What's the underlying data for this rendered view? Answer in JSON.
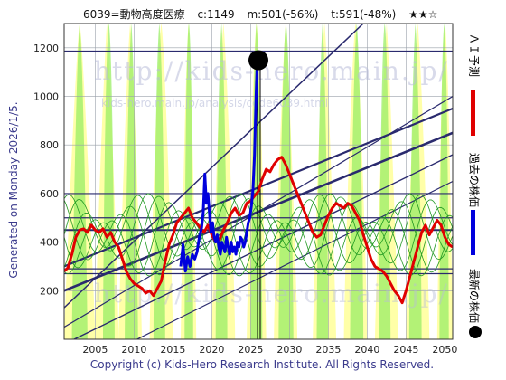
{
  "header": {
    "code_name": "6039=動物高度医療",
    "current": "c:1149",
    "mid": "m:501(-56%)",
    "target": "t:591(-48%)",
    "stars": "★★☆"
  },
  "watermark": {
    "url_text": "http://kids-hero.main.jp/",
    "url_path": "kids-hero.main.jp/analysis/code6039.html"
  },
  "side_note": "Generated on Monday 2026/1/5.",
  "footer": "Copyright (c) Kids-Hero Research Institute. All Rights Reserved.",
  "legend": {
    "ai_forecast": "ＡＩ予測",
    "past_price": "過去の株価",
    "latest_price": "最新の株価"
  },
  "colors": {
    "ai_forecast": "#e00000",
    "past_price": "#0000dd",
    "latest_price": "#000000",
    "band_green": "#99ee66",
    "band_yellow": "#ffff99",
    "trendline": "#2a2a6e",
    "green_lines": "#229922",
    "grid": "#9aa0aa"
  },
  "chart_data": {
    "type": "line",
    "xlim": [
      2001,
      2051
    ],
    "ylim": [
      0,
      1300
    ],
    "xticks": [
      2005,
      2010,
      2015,
      2020,
      2025,
      2030,
      2035,
      2040,
      2045,
      2050
    ],
    "yticks": [
      200,
      400,
      600,
      800,
      1000,
      1200
    ],
    "grid": true,
    "latest_point": {
      "x": 2026.0,
      "y": 1149
    },
    "horizontal_levels": [
      1185,
      600,
      500,
      450,
      290,
      270
    ],
    "series": [
      {
        "name": "ＡＩ予測",
        "values": [
          [
            2001.0,
            280
          ],
          [
            2001.5,
            295
          ],
          [
            2002.0,
            350
          ],
          [
            2002.5,
            420
          ],
          [
            2003.0,
            450
          ],
          [
            2003.5,
            455
          ],
          [
            2004.0,
            440
          ],
          [
            2004.5,
            470
          ],
          [
            2005.0,
            450
          ],
          [
            2005.5,
            440
          ],
          [
            2006.0,
            455
          ],
          [
            2006.5,
            420
          ],
          [
            2007.0,
            440
          ],
          [
            2007.5,
            400
          ],
          [
            2008.0,
            380
          ],
          [
            2008.5,
            330
          ],
          [
            2009.0,
            280
          ],
          [
            2009.5,
            250
          ],
          [
            2010.0,
            230
          ],
          [
            2010.5,
            220
          ],
          [
            2011.0,
            210
          ],
          [
            2011.5,
            190
          ],
          [
            2012.0,
            200
          ],
          [
            2012.5,
            180
          ],
          [
            2013.0,
            210
          ],
          [
            2013.5,
            240
          ],
          [
            2014.0,
            320
          ],
          [
            2014.5,
            390
          ],
          [
            2015.0,
            430
          ],
          [
            2015.5,
            480
          ],
          [
            2016.0,
            500
          ],
          [
            2016.5,
            520
          ],
          [
            2017.0,
            540
          ],
          [
            2017.5,
            500
          ],
          [
            2018.0,
            480
          ],
          [
            2018.5,
            460
          ],
          [
            2019.0,
            440
          ],
          [
            2019.5,
            470
          ],
          [
            2020.0,
            430
          ],
          [
            2020.5,
            400
          ],
          [
            2021.0,
            410
          ],
          [
            2021.5,
            450
          ],
          [
            2022.0,
            480
          ],
          [
            2022.5,
            520
          ],
          [
            2023.0,
            540
          ],
          [
            2023.5,
            510
          ],
          [
            2024.0,
            520
          ],
          [
            2024.5,
            560
          ],
          [
            2025.0,
            570
          ],
          [
            2025.5,
            590
          ],
          [
            2026.0,
            610
          ],
          [
            2026.5,
            660
          ],
          [
            2027.0,
            700
          ],
          [
            2027.5,
            690
          ],
          [
            2028.0,
            720
          ],
          [
            2028.5,
            740
          ],
          [
            2029.0,
            750
          ],
          [
            2029.5,
            720
          ],
          [
            2030.0,
            680
          ],
          [
            2030.5,
            640
          ],
          [
            2031.0,
            600
          ],
          [
            2031.5,
            560
          ],
          [
            2032.0,
            520
          ],
          [
            2032.5,
            480
          ],
          [
            2033.0,
            440
          ],
          [
            2033.5,
            420
          ],
          [
            2034.0,
            430
          ],
          [
            2034.5,
            470
          ],
          [
            2035.0,
            510
          ],
          [
            2035.5,
            540
          ],
          [
            2036.0,
            560
          ],
          [
            2036.5,
            550
          ],
          [
            2037.0,
            540
          ],
          [
            2037.5,
            560
          ],
          [
            2038.0,
            550
          ],
          [
            2038.5,
            520
          ],
          [
            2039.0,
            490
          ],
          [
            2039.5,
            430
          ],
          [
            2040.0,
            380
          ],
          [
            2040.5,
            330
          ],
          [
            2041.0,
            300
          ],
          [
            2041.5,
            290
          ],
          [
            2042.0,
            280
          ],
          [
            2042.5,
            260
          ],
          [
            2043.0,
            230
          ],
          [
            2043.5,
            200
          ],
          [
            2044.0,
            180
          ],
          [
            2044.5,
            150
          ],
          [
            2045.0,
            200
          ],
          [
            2045.5,
            260
          ],
          [
            2046.0,
            320
          ],
          [
            2046.5,
            380
          ],
          [
            2047.0,
            440
          ],
          [
            2047.5,
            470
          ],
          [
            2048.0,
            430
          ],
          [
            2048.5,
            460
          ],
          [
            2049.0,
            490
          ],
          [
            2049.5,
            470
          ],
          [
            2050.0,
            420
          ],
          [
            2050.5,
            390
          ],
          [
            2051.0,
            380
          ]
        ]
      },
      {
        "name": "過去の株価",
        "values": [
          [
            2016.0,
            300
          ],
          [
            2016.3,
            390
          ],
          [
            2016.6,
            280
          ],
          [
            2016.9,
            340
          ],
          [
            2017.2,
            300
          ],
          [
            2017.5,
            350
          ],
          [
            2017.8,
            330
          ],
          [
            2018.1,
            360
          ],
          [
            2018.4,
            420
          ],
          [
            2018.7,
            460
          ],
          [
            2018.9,
            520
          ],
          [
            2019.1,
            680
          ],
          [
            2019.3,
            560
          ],
          [
            2019.5,
            600
          ],
          [
            2019.7,
            520
          ],
          [
            2019.9,
            440
          ],
          [
            2020.1,
            480
          ],
          [
            2020.3,
            420
          ],
          [
            2020.5,
            400
          ],
          [
            2020.7,
            430
          ],
          [
            2020.9,
            380
          ],
          [
            2021.1,
            350
          ],
          [
            2021.3,
            400
          ],
          [
            2021.5,
            380
          ],
          [
            2021.7,
            360
          ],
          [
            2021.9,
            420
          ],
          [
            2022.1,
            380
          ],
          [
            2022.3,
            350
          ],
          [
            2022.5,
            400
          ],
          [
            2022.7,
            360
          ],
          [
            2022.9,
            380
          ],
          [
            2023.1,
            350
          ],
          [
            2023.3,
            400
          ],
          [
            2023.5,
            380
          ],
          [
            2023.7,
            420
          ],
          [
            2023.9,
            410
          ],
          [
            2024.1,
            380
          ],
          [
            2024.3,
            400
          ],
          [
            2024.5,
            440
          ],
          [
            2024.7,
            480
          ],
          [
            2024.9,
            500
          ],
          [
            2025.1,
            550
          ],
          [
            2025.3,
            620
          ],
          [
            2025.5,
            760
          ],
          [
            2025.7,
            1000
          ],
          [
            2025.85,
            1150
          ],
          [
            2026.0,
            1149
          ]
        ]
      }
    ]
  }
}
